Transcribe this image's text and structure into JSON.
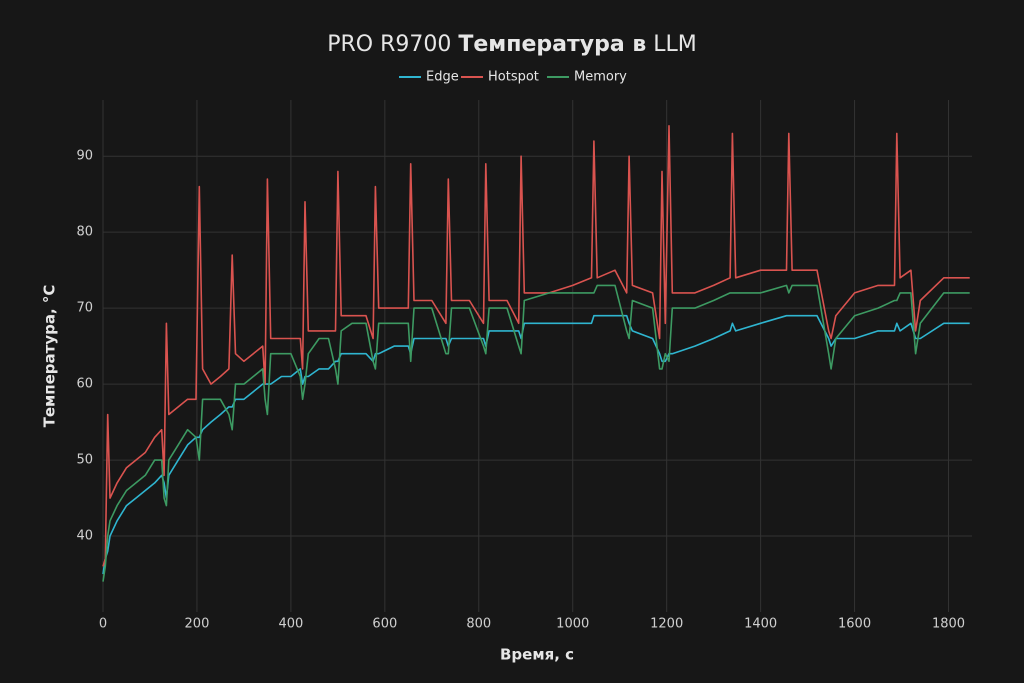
{
  "chart_data": {
    "type": "line",
    "title": [
      "PRO R9700",
      "Температура в",
      "LLM"
    ],
    "x_label": "Время, с",
    "y_label": "Температура, °C",
    "x": [
      0,
      5,
      10,
      15,
      30,
      50,
      70,
      90,
      110,
      125,
      130,
      135,
      140,
      160,
      180,
      198,
      205,
      212,
      230,
      250,
      268,
      275,
      282,
      300,
      320,
      340,
      345,
      350,
      357,
      380,
      400,
      420,
      425,
      430,
      437,
      460,
      480,
      495,
      500,
      507,
      530,
      560,
      575,
      580,
      587,
      620,
      650,
      655,
      662,
      700,
      730,
      735,
      742,
      780,
      810,
      815,
      822,
      860,
      885,
      890,
      897,
      950,
      1000,
      1040,
      1045,
      1052,
      1090,
      1115,
      1120,
      1127,
      1170,
      1185,
      1190,
      1197,
      1205,
      1212,
      1260,
      1300,
      1335,
      1340,
      1347,
      1400,
      1455,
      1460,
      1467,
      1520,
      1545,
      1550,
      1560,
      1600,
      1650,
      1685,
      1690,
      1697,
      1720,
      1730,
      1740,
      1790,
      1845
    ],
    "series": [
      {
        "name": "Edge",
        "color": "#2fb5d0",
        "values": [
          35,
          37,
          38,
          40,
          42,
          44,
          45,
          46,
          47,
          48,
          47,
          45,
          48,
          50,
          52,
          53,
          53,
          54,
          55,
          56,
          57,
          57,
          58,
          58,
          59,
          60,
          60,
          60,
          60,
          61,
          61,
          62,
          60,
          61,
          61,
          62,
          62,
          63,
          63,
          64,
          64,
          64,
          63,
          64,
          64,
          65,
          65,
          64,
          66,
          66,
          66,
          65,
          66,
          66,
          66,
          65,
          67,
          67,
          67,
          66,
          68,
          68,
          68,
          68,
          69,
          69,
          69,
          69,
          68,
          67,
          66,
          64,
          63,
          63,
          64,
          64,
          65,
          66,
          67,
          68,
          67,
          68,
          69,
          69,
          69,
          69,
          66,
          65,
          66,
          66,
          67,
          67,
          68,
          67,
          68,
          66,
          66,
          68,
          68
        ]
      },
      {
        "name": "Hotspot",
        "color": "#d9534f",
        "values": [
          36,
          37,
          56,
          45,
          47,
          49,
          50,
          51,
          53,
          54,
          48,
          68,
          56,
          57,
          58,
          58,
          86,
          62,
          60,
          61,
          62,
          77,
          64,
          63,
          64,
          65,
          60,
          87,
          66,
          66,
          66,
          66,
          62,
          84,
          67,
          67,
          67,
          67,
          88,
          69,
          69,
          69,
          66,
          86,
          70,
          70,
          70,
          89,
          71,
          71,
          68,
          87,
          71,
          71,
          68,
          89,
          71,
          71,
          68,
          90,
          72,
          72,
          73,
          74,
          92,
          74,
          75,
          72,
          90,
          73,
          72,
          66,
          88,
          68,
          94,
          72,
          72,
          73,
          74,
          93,
          74,
          75,
          75,
          93,
          75,
          75,
          67,
          66,
          69,
          72,
          73,
          73,
          93,
          74,
          75,
          67,
          71,
          74,
          74
        ]
      },
      {
        "name": "Memory",
        "color": "#3d9a62",
        "values": [
          34,
          36,
          40,
          42,
          44,
          46,
          47,
          48,
          50,
          50,
          45,
          44,
          50,
          52,
          54,
          53,
          50,
          58,
          58,
          58,
          56,
          54,
          60,
          60,
          61,
          62,
          58,
          56,
          64,
          64,
          64,
          61,
          58,
          60,
          64,
          66,
          66,
          62,
          60,
          67,
          68,
          68,
          63,
          62,
          68,
          68,
          68,
          63,
          70,
          70,
          64,
          64,
          70,
          70,
          65,
          64,
          70,
          70,
          65,
          64,
          71,
          72,
          72,
          72,
          72,
          73,
          73,
          67,
          66,
          71,
          70,
          62,
          62,
          64,
          63,
          70,
          70,
          71,
          72,
          72,
          72,
          72,
          73,
          72,
          73,
          73,
          64,
          62,
          66,
          69,
          70,
          71,
          71,
          72,
          72,
          64,
          68,
          72,
          72
        ]
      }
    ],
    "xlim": [
      0,
      1850
    ],
    "ylim": [
      30,
      97.4
    ],
    "xticks": [
      0,
      200,
      400,
      600,
      800,
      1000,
      1200,
      1400,
      1600,
      1800
    ],
    "yticks": [
      40,
      50,
      60,
      70,
      80,
      90
    ],
    "grid": true,
    "legend": "top"
  }
}
